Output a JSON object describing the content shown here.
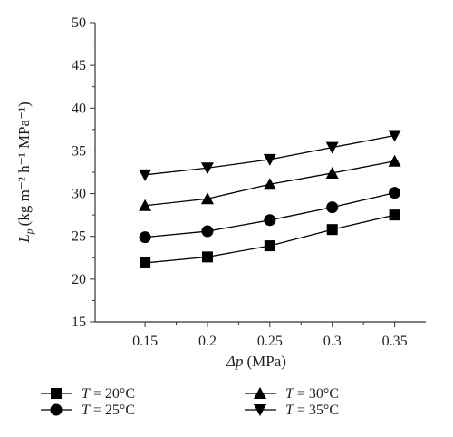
{
  "chart_data": {
    "type": "line",
    "title": "",
    "xlabel": {
      "symbol": "Δp",
      "unit": "(MPa)"
    },
    "ylabel": {
      "symbol": "L",
      "subscript": "p",
      "unit": "(kg m⁻² h⁻¹ MPa⁻¹)"
    },
    "x": [
      0.15,
      0.2,
      0.25,
      0.3,
      0.35
    ],
    "xtick_labels": [
      "0.15",
      "0.2",
      "0.25",
      "0.3",
      "0.35"
    ],
    "yticks": [
      15,
      20,
      25,
      30,
      35,
      40,
      45,
      50
    ],
    "ytick_labels": [
      "15",
      "20",
      "25",
      "30",
      "35",
      "40",
      "45",
      "50"
    ],
    "xlim": [
      0.11,
      0.375
    ],
    "ylim": [
      15,
      50
    ],
    "grid": false,
    "legend_position": "bottom",
    "series": [
      {
        "name": "T = 20°C",
        "var": "T",
        "rest": " = 20°C",
        "marker": "square",
        "values": [
          21.9,
          22.6,
          23.9,
          25.8,
          27.5
        ]
      },
      {
        "name": "T = 25°C",
        "var": "T",
        "rest": " = 25°C",
        "marker": "circle",
        "values": [
          24.9,
          25.6,
          26.9,
          28.4,
          30.1
        ]
      },
      {
        "name": "T = 30°C",
        "var": "T",
        "rest": " = 30°C",
        "marker": "triangle-up",
        "values": [
          28.6,
          29.4,
          31.1,
          32.4,
          33.8
        ]
      },
      {
        "name": "T = 35°C",
        "var": "T",
        "rest": " = 35°C",
        "marker": "triangle-down",
        "values": [
          32.2,
          33.0,
          34.0,
          35.4,
          36.8
        ]
      }
    ]
  }
}
